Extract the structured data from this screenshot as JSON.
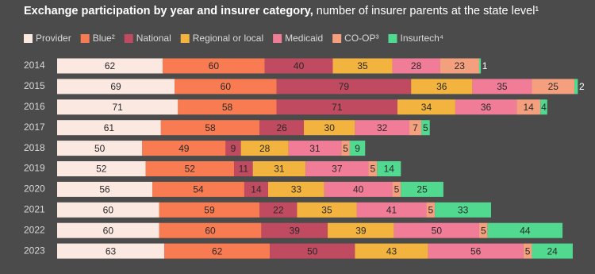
{
  "chart_data": {
    "type": "stacked-bar-horizontal",
    "title": "Exchange participation by year and insurer category,",
    "subtitle": "number of insurer parents at the state level¹",
    "categories": [
      "2014",
      "2015",
      "2016",
      "2017",
      "2018",
      "2019",
      "2020",
      "2021",
      "2022",
      "2023"
    ],
    "series": [
      {
        "name": "Provider",
        "color": "#fbe8e0",
        "values": [
          62,
          69,
          71,
          61,
          50,
          52,
          56,
          60,
          60,
          63
        ]
      },
      {
        "name": "Blue²",
        "color": "#f97b51",
        "values": [
          60,
          60,
          58,
          58,
          49,
          52,
          54,
          59,
          60,
          62
        ]
      },
      {
        "name": "National",
        "color": "#c04a5f",
        "values": [
          40,
          79,
          71,
          26,
          9,
          11,
          14,
          22,
          39,
          50
        ]
      },
      {
        "name": "Regional or local",
        "color": "#f2b43e",
        "values": [
          35,
          36,
          34,
          30,
          28,
          31,
          33,
          35,
          39,
          43
        ]
      },
      {
        "name": "Medicaid",
        "color": "#f07c98",
        "values": [
          28,
          35,
          36,
          32,
          31,
          37,
          40,
          41,
          50,
          56
        ]
      },
      {
        "name": "CO-OP³",
        "color": "#f4a07e",
        "values": [
          23,
          25,
          14,
          7,
          5,
          5,
          5,
          5,
          5,
          5
        ]
      },
      {
        "name": "Insurtech⁴",
        "color": "#50d98f",
        "values": [
          1,
          2,
          4,
          5,
          9,
          14,
          25,
          33,
          44,
          24
        ]
      }
    ]
  }
}
